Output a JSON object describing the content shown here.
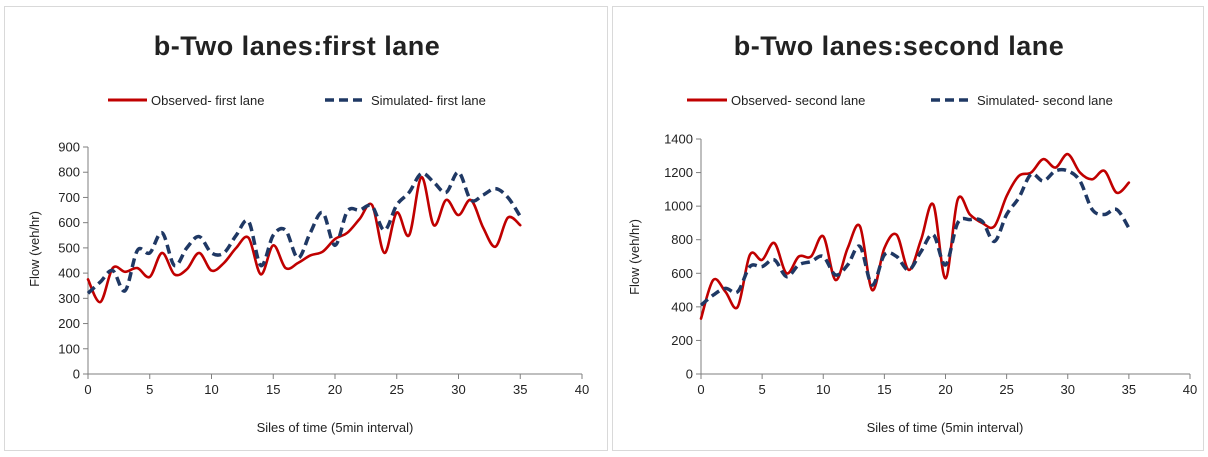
{
  "chart_data": [
    {
      "type": "line",
      "title": "b-Two lanes:first lane",
      "xlabel": "Siles of time (5min interval)",
      "ylabel": "Flow (veh/hr)",
      "xlim": [
        0,
        40
      ],
      "ylim": [
        0,
        900
      ],
      "xticks": [
        "0",
        "5",
        "10",
        "15",
        "20",
        "25",
        "30",
        "35",
        "40"
      ],
      "yticks": [
        "0",
        "100",
        "200",
        "300",
        "400",
        "500",
        "600",
        "700",
        "800",
        "900"
      ],
      "grid": false,
      "legend_position": "top",
      "x": [
        0,
        1,
        2,
        3,
        4,
        5,
        6,
        7,
        8,
        9,
        10,
        11,
        12,
        13,
        14,
        15,
        16,
        17,
        18,
        19,
        20,
        21,
        22,
        23,
        24,
        25,
        26,
        27,
        28,
        29,
        30,
        31,
        32,
        33,
        34,
        35
      ],
      "series": [
        {
          "name": "Observed- first lane",
          "color": "#c00000",
          "dash": "solid",
          "values": [
            375,
            285,
            420,
            405,
            420,
            385,
            480,
            395,
            415,
            480,
            410,
            440,
            500,
            540,
            395,
            510,
            420,
            440,
            470,
            485,
            535,
            560,
            615,
            670,
            480,
            640,
            550,
            780,
            590,
            690,
            630,
            690,
            580,
            505,
            620,
            590
          ]
        },
        {
          "name": "Simulated- first lane",
          "color": "#1f3864",
          "dash": "dashed",
          "values": [
            320,
            365,
            410,
            330,
            490,
            480,
            560,
            430,
            500,
            545,
            480,
            480,
            550,
            605,
            430,
            550,
            570,
            460,
            560,
            640,
            510,
            645,
            650,
            665,
            570,
            670,
            720,
            795,
            760,
            720,
            800,
            690,
            710,
            735,
            700,
            625
          ]
        }
      ]
    },
    {
      "type": "line",
      "title": "b-Two lanes:second lane",
      "xlabel": "Siles of time (5min interval)",
      "ylabel": "Flow (veh/hr)",
      "xlim": [
        0,
        40
      ],
      "ylim": [
        0,
        1400
      ],
      "xticks": [
        "0",
        "5",
        "10",
        "15",
        "20",
        "25",
        "30",
        "35",
        "40"
      ],
      "yticks": [
        "0",
        "200",
        "400",
        "600",
        "800",
        "1000",
        "1200",
        "1400"
      ],
      "grid": false,
      "legend_position": "top",
      "x": [
        0,
        1,
        2,
        3,
        4,
        5,
        6,
        7,
        8,
        9,
        10,
        11,
        12,
        13,
        14,
        15,
        16,
        17,
        18,
        19,
        20,
        21,
        22,
        23,
        24,
        25,
        26,
        27,
        28,
        29,
        30,
        31,
        32,
        33,
        34,
        35
      ],
      "series": [
        {
          "name": "Observed- second lane",
          "color": "#c00000",
          "dash": "solid",
          "values": [
            330,
            560,
            490,
            400,
            710,
            680,
            780,
            600,
            700,
            700,
            820,
            560,
            750,
            880,
            500,
            750,
            830,
            620,
            800,
            1010,
            570,
            1040,
            950,
            900,
            880,
            1060,
            1180,
            1200,
            1280,
            1230,
            1310,
            1200,
            1160,
            1210,
            1080,
            1140
          ]
        },
        {
          "name": "Simulated- second lane",
          "color": "#1f3864",
          "dash": "dashed",
          "values": [
            410,
            470,
            510,
            490,
            640,
            640,
            680,
            580,
            650,
            670,
            700,
            590,
            650,
            760,
            530,
            710,
            700,
            620,
            730,
            830,
            650,
            900,
            920,
            910,
            790,
            950,
            1050,
            1190,
            1150,
            1210,
            1210,
            1150,
            980,
            950,
            980,
            870
          ]
        }
      ]
    }
  ]
}
